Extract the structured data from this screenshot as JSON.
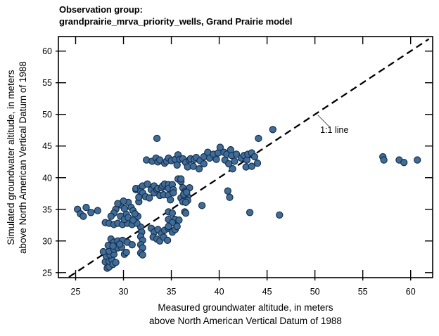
{
  "chart_title": {
    "line1": "Observation group:",
    "line2": "grandprairie_mrva_priority_wells, Grand Prairie model"
  },
  "chart_data": {
    "type": "scatter",
    "title": "Observation group: grandprairie_mrva_priority_wells, Grand Prairie model",
    "xlabel_line1": "Measured groundwater altitude, in meters",
    "xlabel_line2": "above North American Vertical Datum of 1988",
    "ylabel_line1": "Simulated groundwater altitude, in meters",
    "ylabel_line2": "above North American Vertical Datum of 1988",
    "xlim": [
      23.2,
      62.3
    ],
    "ylim": [
      24.2,
      62.3
    ],
    "x_ticks": [
      25,
      30,
      35,
      40,
      45,
      50,
      55,
      60
    ],
    "y_ticks": [
      25,
      30,
      35,
      40,
      45,
      50,
      55,
      60
    ],
    "grid": false,
    "legend": "none",
    "colors": {
      "marker_fill": "#3b6d9d",
      "marker_edge": "#1b2d42",
      "line": "#000000",
      "axis": "#000000",
      "text": "#000000"
    },
    "one_to_one_line": {
      "from": 24.3,
      "to": 61.9,
      "dash": [
        10,
        6
      ]
    },
    "annotation": {
      "label": "1:1 line",
      "text_x": 51.8,
      "text_y": 47.5,
      "leader": [
        [
          50.3,
          49.9
        ],
        [
          51.6,
          47.9
        ]
      ]
    },
    "points": [
      [
        25.2,
        35.0
      ],
      [
        25.5,
        34.3
      ],
      [
        26.1,
        35.3
      ],
      [
        26.6,
        34.5
      ],
      [
        27.3,
        34.8
      ],
      [
        25.8,
        33.9
      ],
      [
        28.3,
        25.7
      ],
      [
        28.5,
        25.9
      ],
      [
        28.1,
        26.7
      ],
      [
        28.5,
        26.8
      ],
      [
        28.8,
        27.0
      ],
      [
        28.2,
        27.6
      ],
      [
        28.6,
        27.8
      ],
      [
        29.0,
        27.9
      ],
      [
        27.9,
        28.3
      ],
      [
        28.5,
        28.4
      ],
      [
        29.0,
        28.7
      ],
      [
        29.4,
        28.9
      ],
      [
        29.8,
        29.0
      ],
      [
        28.7,
        30.3
      ],
      [
        29.0,
        29.8
      ],
      [
        29.4,
        30.0
      ],
      [
        29.9,
        30.1
      ],
      [
        30.4,
        29.8
      ],
      [
        30.9,
        29.4
      ],
      [
        30.1,
        27.9
      ],
      [
        30.3,
        28.2
      ],
      [
        31.8,
        32.2
      ],
      [
        31.9,
        31.4
      ],
      [
        31.8,
        30.7
      ],
      [
        32.0,
        30.1
      ],
      [
        31.8,
        29.4
      ],
      [
        32.0,
        28.9
      ],
      [
        31.8,
        28.1
      ],
      [
        32.0,
        27.8
      ],
      [
        28.9,
        26.3
      ],
      [
        29.2,
        26.6
      ],
      [
        28.4,
        29.3
      ],
      [
        28.9,
        29.2
      ],
      [
        29.6,
        29.5
      ],
      [
        28.1,
        32.9
      ],
      [
        28.5,
        32.8
      ],
      [
        29.0,
        32.6
      ],
      [
        29.4,
        32.8
      ],
      [
        29.9,
        32.6
      ],
      [
        30.4,
        32.8
      ],
      [
        30.9,
        32.6
      ],
      [
        31.4,
        32.8
      ],
      [
        29.2,
        35.0
      ],
      [
        29.7,
        35.7
      ],
      [
        30.1,
        35.1
      ],
      [
        30.5,
        36.1
      ],
      [
        30.8,
        35.3
      ],
      [
        31.0,
        34.8
      ],
      [
        30.3,
        34.2
      ],
      [
        29.7,
        33.9
      ],
      [
        30.1,
        33.4
      ],
      [
        30.5,
        33.7
      ],
      [
        31.0,
        33.3
      ],
      [
        31.5,
        33.9
      ],
      [
        31.6,
        36.2
      ],
      [
        29.4,
        35.9
      ],
      [
        30.0,
        36.3
      ],
      [
        29.0,
        34.4
      ],
      [
        28.7,
        33.9
      ],
      [
        31.2,
        34.3
      ],
      [
        32.9,
        32.0
      ],
      [
        33.2,
        31.4
      ],
      [
        33.6,
        31.8
      ],
      [
        34.0,
        31.2
      ],
      [
        34.3,
        31.7
      ],
      [
        34.7,
        32.0
      ],
      [
        35.1,
        31.4
      ],
      [
        33.1,
        30.6
      ],
      [
        33.5,
        30.3
      ],
      [
        33.8,
        30.0
      ],
      [
        34.2,
        30.6
      ],
      [
        34.6,
        30.1
      ],
      [
        35.4,
        31.8
      ],
      [
        34.7,
        34.6
      ],
      [
        35.1,
        34.4
      ],
      [
        35.4,
        33.4
      ],
      [
        34.7,
        33.4
      ],
      [
        35.1,
        32.9
      ],
      [
        35.6,
        32.3
      ],
      [
        34.7,
        32.3
      ],
      [
        35.8,
        33.3
      ],
      [
        36.4,
        34.6
      ],
      [
        36.5,
        34.4
      ],
      [
        31.3,
        38.1
      ],
      [
        31.3,
        38.3
      ],
      [
        31.8,
        38.4
      ],
      [
        31.8,
        37.8
      ],
      [
        32.0,
        38.7
      ],
      [
        32.0,
        37.6
      ],
      [
        32.3,
        37.0
      ],
      [
        32.5,
        39.0
      ],
      [
        32.7,
        36.8
      ],
      [
        32.9,
        38.1
      ],
      [
        33.2,
        38.7
      ],
      [
        33.2,
        37.6
      ],
      [
        33.5,
        38.1
      ],
      [
        33.6,
        38.3
      ],
      [
        33.8,
        37.2
      ],
      [
        34.0,
        38.4
      ],
      [
        34.1,
        38.7
      ],
      [
        34.2,
        37.3
      ],
      [
        34.3,
        39.0
      ],
      [
        34.7,
        38.9
      ],
      [
        34.7,
        38.3
      ],
      [
        34.7,
        37.2
      ],
      [
        35.1,
        38.9
      ],
      [
        35.2,
        38.1
      ],
      [
        35.2,
        37.6
      ],
      [
        35.7,
        39.8
      ],
      [
        36.0,
        39.4
      ],
      [
        36.0,
        39.8
      ],
      [
        36.2,
        38.4
      ],
      [
        36.4,
        37.8
      ],
      [
        36.5,
        37.3
      ],
      [
        36.7,
        37.0
      ],
      [
        36.3,
        37.0
      ],
      [
        36.0,
        36.8
      ],
      [
        36.4,
        36.7
      ],
      [
        36.7,
        36.4
      ],
      [
        36.2,
        36.2
      ],
      [
        36.5,
        36.1
      ],
      [
        36.9,
        38.4
      ],
      [
        36.4,
        37.6
      ],
      [
        36.3,
        37.4
      ],
      [
        36.6,
        37.7
      ],
      [
        31.6,
        36.9
      ],
      [
        34.9,
        36.5
      ],
      [
        32.4,
        42.8
      ],
      [
        33.0,
        42.6
      ],
      [
        33.4,
        43.1
      ],
      [
        33.6,
        42.5
      ],
      [
        33.8,
        42.8
      ],
      [
        34.3,
        42.3
      ],
      [
        34.5,
        42.6
      ],
      [
        34.7,
        43.1
      ],
      [
        35.0,
        42.7
      ],
      [
        35.4,
        42.9
      ],
      [
        35.6,
        42.0
      ],
      [
        35.7,
        43.6
      ],
      [
        35.9,
        42.9
      ],
      [
        36.2,
        43.0
      ],
      [
        36.5,
        42.4
      ],
      [
        36.7,
        41.7
      ],
      [
        36.9,
        42.8
      ],
      [
        37.0,
        43.0
      ],
      [
        37.3,
        41.8
      ],
      [
        37.4,
        42.9
      ],
      [
        37.6,
        43.2
      ],
      [
        37.9,
        41.4
      ],
      [
        38.0,
        42.7
      ],
      [
        38.4,
        42.2
      ],
      [
        38.4,
        43.3
      ],
      [
        38.8,
        44.0
      ],
      [
        39.0,
        43.1
      ],
      [
        39.4,
        43.7
      ],
      [
        39.7,
        42.9
      ],
      [
        39.9,
        43.9
      ],
      [
        40.1,
        44.8
      ],
      [
        40.5,
        44.0
      ],
      [
        40.6,
        42.8
      ],
      [
        40.8,
        43.7
      ],
      [
        41.0,
        42.2
      ],
      [
        41.2,
        44.4
      ],
      [
        41.3,
        43.5
      ],
      [
        41.4,
        41.4
      ],
      [
        41.6,
        42.6
      ],
      [
        41.8,
        43.7
      ],
      [
        42.3,
        43.1
      ],
      [
        42.6,
        43.5
      ],
      [
        42.8,
        41.7
      ],
      [
        42.9,
        42.8
      ],
      [
        43.0,
        43.7
      ],
      [
        43.4,
        43.9
      ],
      [
        43.4,
        41.8
      ],
      [
        43.7,
        43.3
      ],
      [
        44.0,
        42.3
      ],
      [
        33.5,
        46.2
      ],
      [
        44.1,
        46.2
      ],
      [
        45.6,
        47.6
      ],
      [
        40.9,
        37.9
      ],
      [
        41.1,
        36.9
      ],
      [
        38.2,
        35.6
      ],
      [
        43.2,
        34.5
      ],
      [
        46.3,
        34.1
      ],
      [
        57.1,
        43.3
      ],
      [
        57.2,
        42.8
      ],
      [
        58.8,
        42.8
      ],
      [
        59.3,
        42.4
      ],
      [
        60.7,
        42.8
      ]
    ]
  }
}
